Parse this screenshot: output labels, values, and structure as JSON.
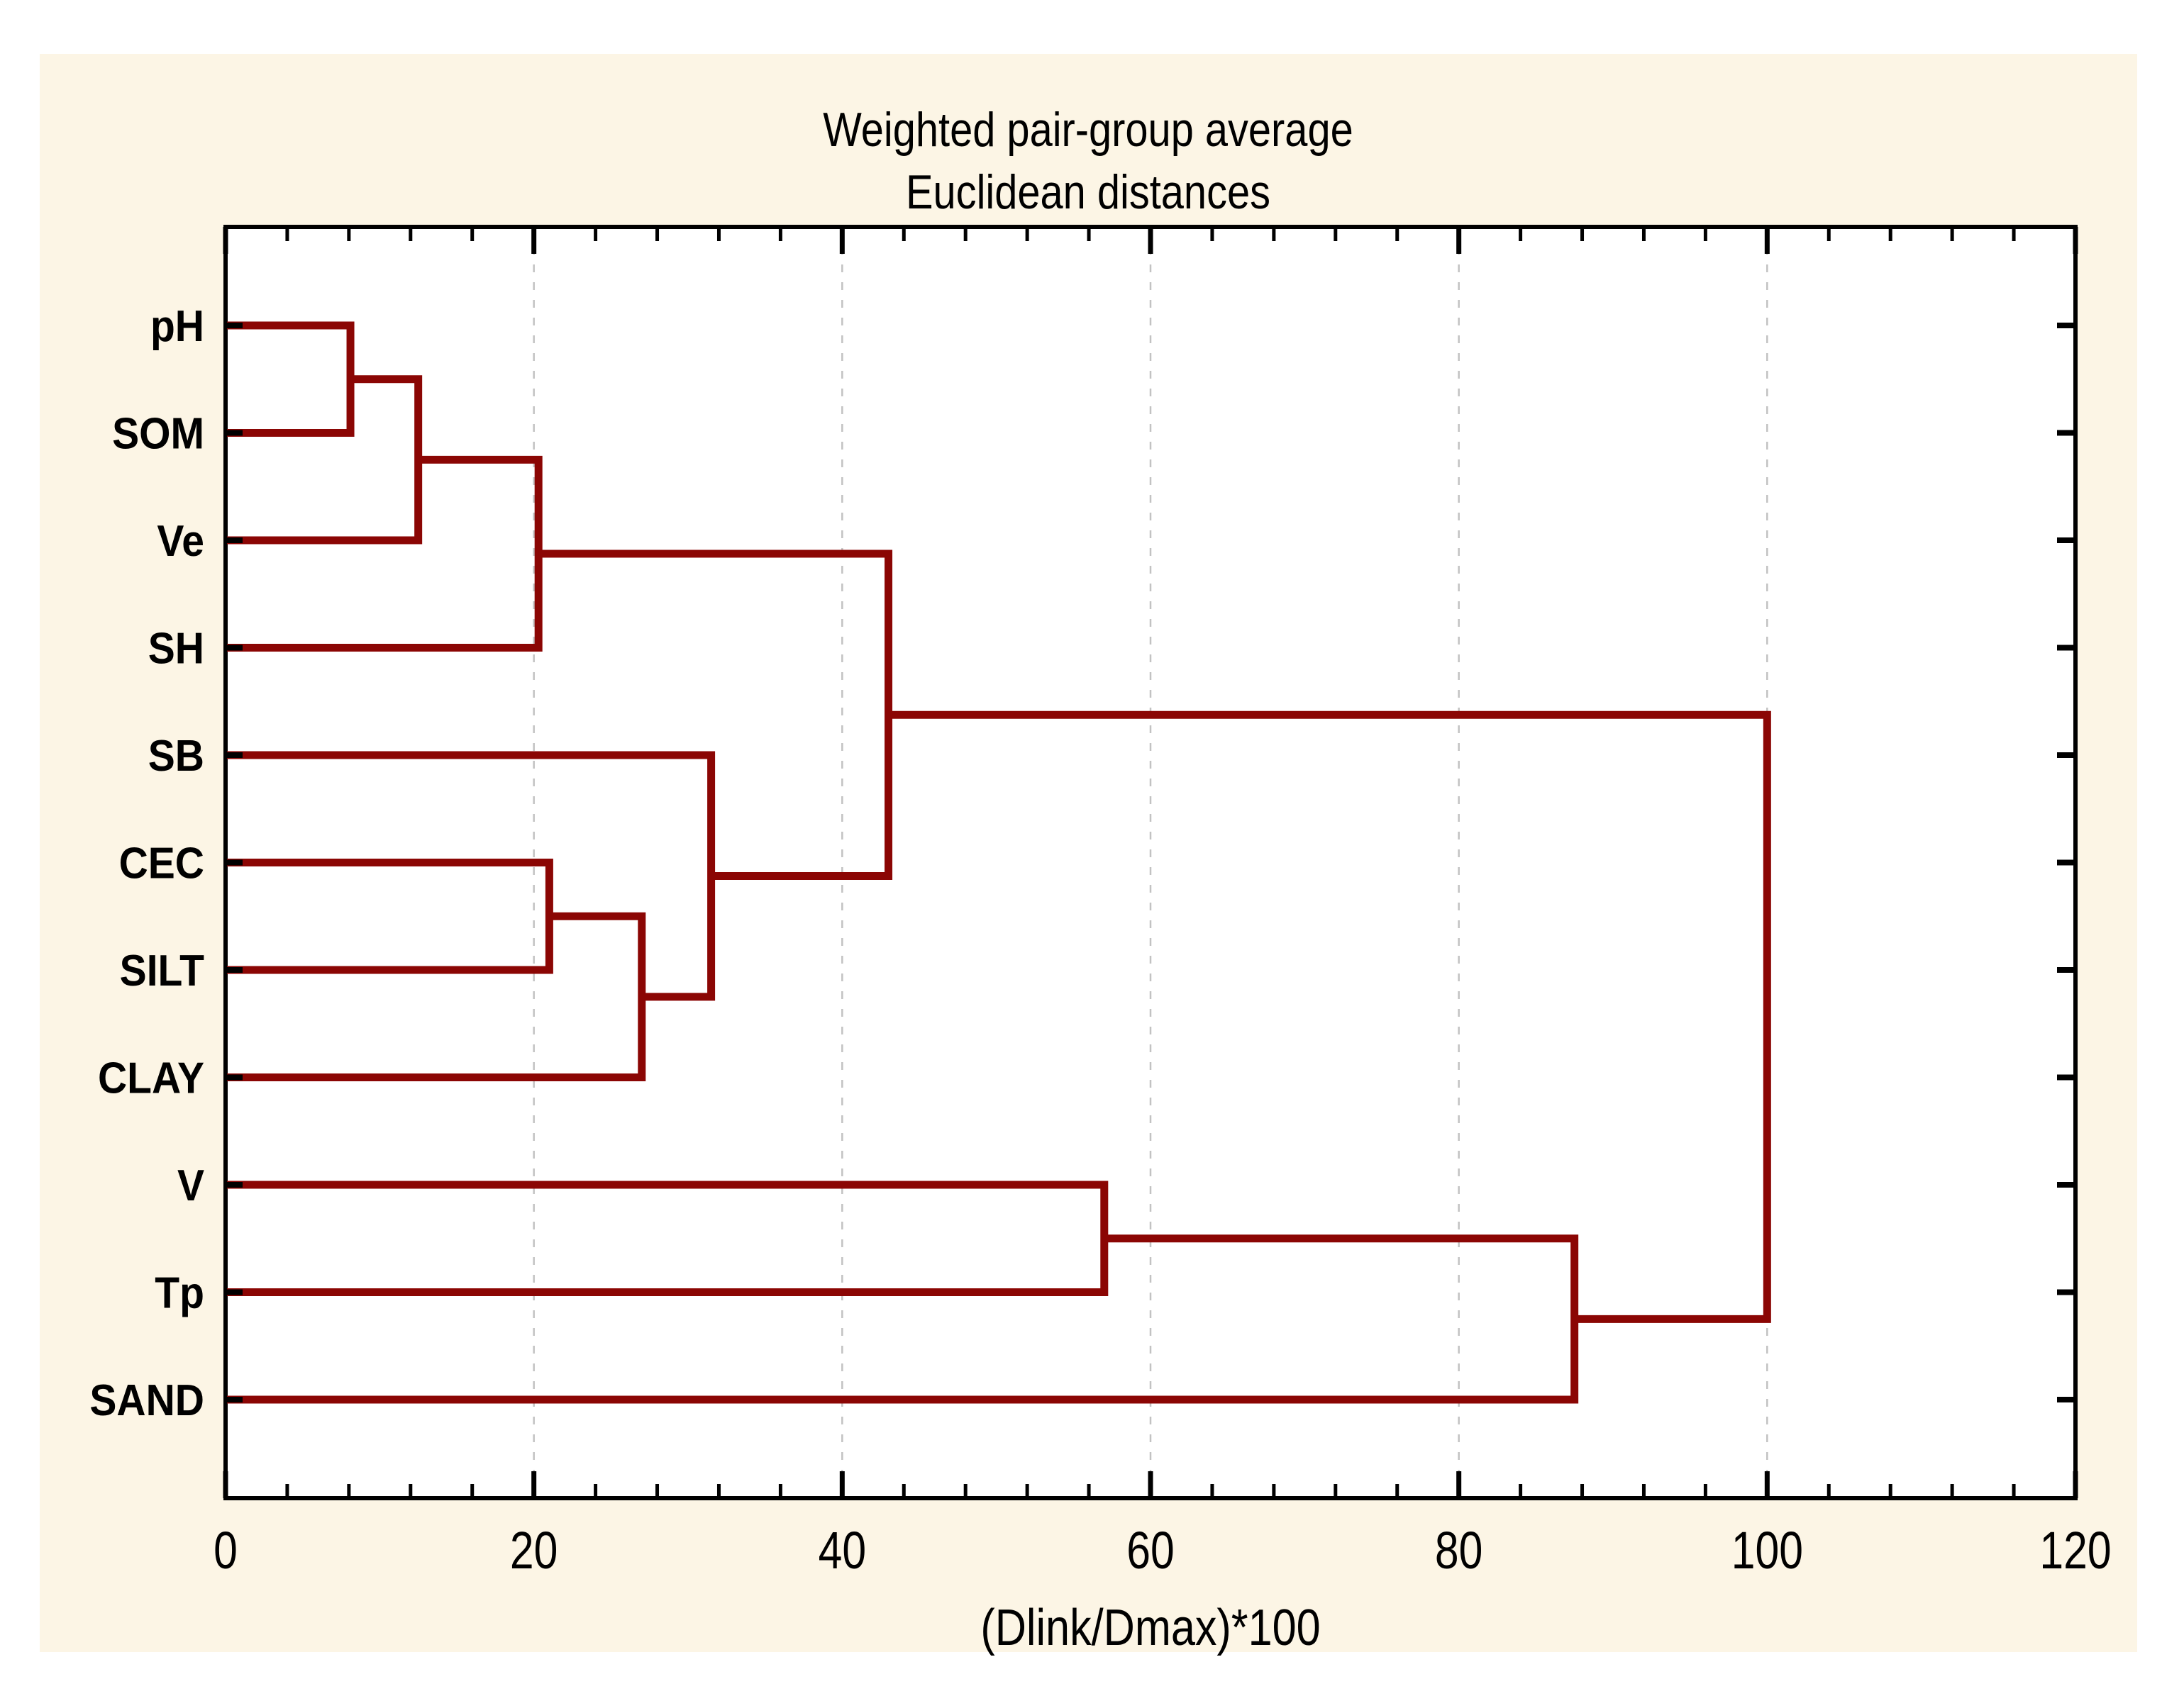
{
  "title": {
    "line1": "Weighted pair-group average",
    "line2": "Euclidean distances"
  },
  "x_axis": {
    "label": "(Dlink/Dmax)*100",
    "min": 0,
    "max": 120,
    "major_tick_values": [
      0,
      20,
      40,
      60,
      80,
      100,
      120
    ],
    "tick_labels": [
      "0",
      "20",
      "40",
      "60",
      "80",
      "100",
      "120"
    ],
    "minor_tick_step": 4,
    "gridline_values": [
      20,
      40,
      60,
      80,
      100
    ]
  },
  "leaves": [
    "pH",
    "SOM",
    "Ve",
    "SH",
    "SB",
    "CEC",
    "SILT",
    "CLAY",
    "V",
    "Tp",
    "SAND"
  ],
  "chart_data": {
    "type": "dendrogram",
    "orientation": "horizontal",
    "linkage_method": "Weighted pair-group average",
    "distance_metric": "Euclidean distances",
    "value_axis_label": "(Dlink/Dmax)*100",
    "value_axis_range": [
      0,
      120
    ],
    "grid": "dashed vertical lines at 20,40,60,80,100",
    "leaves_top_to_bottom": [
      "pH",
      "SOM",
      "Ve",
      "SH",
      "SB",
      "CEC",
      "SILT",
      "CLAY",
      "V",
      "Tp",
      "SAND"
    ],
    "merges": [
      {
        "id": "m1",
        "a": "pH",
        "b": "SOM",
        "dlink_pct": 8.1
      },
      {
        "id": "m2",
        "a": "m1",
        "b": "Ve",
        "dlink_pct": 12.5
      },
      {
        "id": "m3",
        "a": "m2",
        "b": "SH",
        "dlink_pct": 20.3
      },
      {
        "id": "m4",
        "a": "CEC",
        "b": "SILT",
        "dlink_pct": 21.0
      },
      {
        "id": "m5",
        "a": "m4",
        "b": "CLAY",
        "dlink_pct": 27.0
      },
      {
        "id": "m6",
        "a": "SB",
        "b": "m5",
        "dlink_pct": 31.5
      },
      {
        "id": "m7",
        "a": "m3",
        "b": "m6",
        "dlink_pct": 43.0
      },
      {
        "id": "m8",
        "a": "V",
        "b": "Tp",
        "dlink_pct": 57.0
      },
      {
        "id": "m9",
        "a": "m8",
        "b": "SAND",
        "dlink_pct": 87.5
      },
      {
        "id": "m10",
        "a": "m7",
        "b": "m9",
        "dlink_pct": 100.0
      }
    ]
  },
  "colors": {
    "page_background": "#FFFFFF",
    "canvas_background": "#FCF5E5",
    "plot_background": "#FFFFFF",
    "plot_border": "#000000",
    "dendrogram_line": "#8B0604",
    "gridline": "#C2C2C2",
    "text": "#000000"
  }
}
